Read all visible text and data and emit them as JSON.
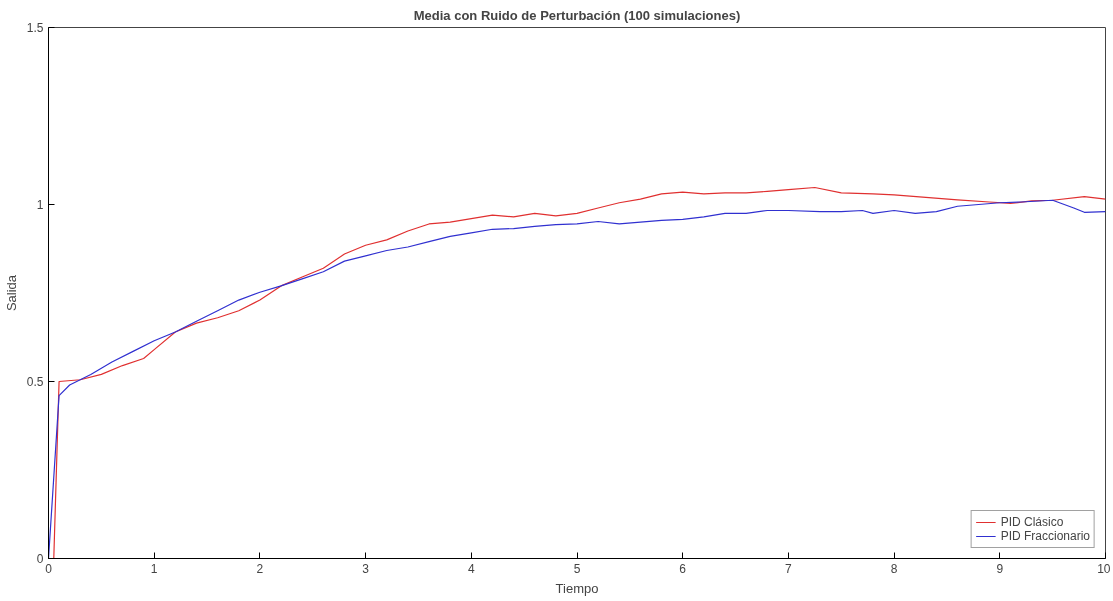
{
  "chart_data": {
    "type": "line",
    "title": "Media con Ruido de Perturbación (100 simulaciones)",
    "xlabel": "Tiempo",
    "ylabel": "Salida",
    "xlim": [
      0,
      10
    ],
    "ylim": [
      0,
      1.5
    ],
    "xticks": [
      0,
      1,
      2,
      3,
      4,
      5,
      6,
      7,
      8,
      9,
      10
    ],
    "yticks": [
      0,
      0.5,
      1,
      1.5
    ],
    "grid": false,
    "legend": "bottom right",
    "line_style": "solid",
    "series": [
      {
        "name": "PID Clásico",
        "color": "#e03030",
        "x": [
          0,
          0.05,
          0.1,
          0.3,
          0.5,
          0.7,
          0.9,
          1.0,
          1.2,
          1.4,
          1.6,
          1.8,
          2.0,
          2.2,
          2.4,
          2.6,
          2.8,
          3.0,
          3.2,
          3.4,
          3.6,
          3.8,
          4.0,
          4.2,
          4.4,
          4.6,
          4.8,
          5.0,
          5.2,
          5.4,
          5.6,
          5.8,
          6.0,
          6.2,
          6.4,
          6.6,
          6.8,
          7.0,
          7.25,
          7.5,
          7.8,
          8.0,
          8.3,
          8.6,
          8.9,
          9.1,
          9.3,
          9.5,
          9.8,
          10
        ],
        "values": [
          0,
          0,
          0.5,
          0.505,
          0.52,
          0.545,
          0.565,
          0.59,
          0.64,
          0.665,
          0.68,
          0.7,
          0.73,
          0.77,
          0.795,
          0.82,
          0.86,
          0.885,
          0.9,
          0.925,
          0.945,
          0.95,
          0.96,
          0.97,
          0.965,
          0.975,
          0.968,
          0.975,
          0.99,
          1.005,
          1.015,
          1.03,
          1.035,
          1.03,
          1.033,
          1.033,
          1.037,
          1.042,
          1.048,
          1.033,
          1.03,
          1.027,
          1.02,
          1.013,
          1.007,
          1.003,
          1.01,
          1.012,
          1.022,
          1.015
        ]
      },
      {
        "name": "PID Fraccionario",
        "color": "#3030d0",
        "x": [
          0,
          0.1,
          0.2,
          0.4,
          0.6,
          0.8,
          1.0,
          1.2,
          1.4,
          1.6,
          1.8,
          2.0,
          2.2,
          2.4,
          2.6,
          2.8,
          3.0,
          3.2,
          3.4,
          3.6,
          3.8,
          4.0,
          4.2,
          4.4,
          4.6,
          4.8,
          5.0,
          5.2,
          5.4,
          5.6,
          5.8,
          6.0,
          6.2,
          6.4,
          6.6,
          6.8,
          7.0,
          7.3,
          7.5,
          7.7,
          7.8,
          8.0,
          8.2,
          8.4,
          8.6,
          8.8,
          9.0,
          9.2,
          9.5,
          9.7,
          9.8,
          10
        ],
        "values": [
          0,
          0.46,
          0.49,
          0.52,
          0.555,
          0.585,
          0.615,
          0.64,
          0.67,
          0.7,
          0.73,
          0.752,
          0.77,
          0.79,
          0.81,
          0.84,
          0.855,
          0.87,
          0.88,
          0.895,
          0.91,
          0.92,
          0.93,
          0.932,
          0.938,
          0.943,
          0.945,
          0.952,
          0.945,
          0.95,
          0.955,
          0.958,
          0.965,
          0.975,
          0.975,
          0.983,
          0.983,
          0.98,
          0.98,
          0.983,
          0.975,
          0.983,
          0.975,
          0.98,
          0.995,
          1.0,
          1.005,
          1.007,
          1.012,
          0.99,
          0.978,
          0.98
        ]
      }
    ]
  }
}
